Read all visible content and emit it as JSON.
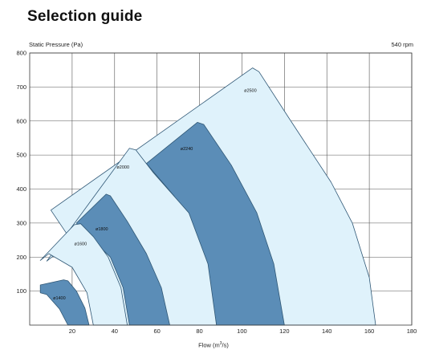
{
  "page_title": "Selection guide",
  "ylabel": "Static Pressure (Pa)",
  "rpm_label": "540 rpm",
  "xlabel_text": "Flow (m",
  "xlabel_sup": "3",
  "xlabel_tail": "/s)",
  "chart_data": {
    "type": "area",
    "title": "Selection guide",
    "xlabel": "Flow (m³/s)",
    "ylabel": "Static Pressure (Pa)",
    "xlim": [
      0,
      180
    ],
    "ylim": [
      0,
      800
    ],
    "xticks": [
      20,
      40,
      60,
      80,
      100,
      120,
      140,
      160,
      180
    ],
    "yticks": [
      100,
      200,
      300,
      400,
      500,
      600,
      700,
      800
    ],
    "grid": true,
    "annotation": "540 rpm",
    "colors": {
      "light": "#dff2fb",
      "dark": "#5b8db7",
      "outline": "#2f5775"
    },
    "regions": [
      {
        "label": "ø2500",
        "shade": "light",
        "label_at": [
          101,
          685
        ],
        "outline": [
          [
            10,
            338
          ],
          [
            105,
            756
          ],
          [
            108,
            745
          ],
          [
            122,
            610
          ],
          [
            142,
            420
          ],
          [
            152,
            300
          ],
          [
            160,
            140
          ],
          [
            163,
            0
          ],
          [
            43,
            0
          ],
          [
            30,
            135
          ],
          [
            20,
            245
          ]
        ]
      },
      {
        "label": "ø2240",
        "shade": "dark",
        "label_at": [
          71,
          515
        ],
        "outline": [
          [
            55,
            475
          ],
          [
            79,
            596
          ],
          [
            82,
            590
          ],
          [
            95,
            470
          ],
          [
            107,
            330
          ],
          [
            115,
            180
          ],
          [
            120,
            0
          ],
          [
            88,
            0
          ],
          [
            85,
            120
          ],
          [
            78,
            260
          ],
          [
            68,
            380
          ]
        ]
      },
      {
        "label": "ø2000",
        "shade": "light",
        "label_at": [
          41,
          460
        ],
        "outline": [
          [
            8,
            188
          ],
          [
            47,
            520
          ],
          [
            50,
            515
          ],
          [
            58,
            450
          ],
          [
            75,
            330
          ],
          [
            84,
            180
          ],
          [
            88,
            0
          ],
          [
            65,
            0
          ],
          [
            60,
            120
          ],
          [
            52,
            240
          ],
          [
            38,
            335
          ]
        ]
      },
      {
        "label": "ø1800",
        "shade": "dark",
        "label_at": [
          31,
          278
        ],
        "outline": [
          [
            22,
            300
          ],
          [
            36,
            385
          ],
          [
            38,
            380
          ],
          [
            46,
            305
          ],
          [
            55,
            210
          ],
          [
            62,
            110
          ],
          [
            66,
            0
          ],
          [
            47,
            0
          ],
          [
            44,
            110
          ],
          [
            38,
            200
          ],
          [
            28,
            260
          ]
        ]
      },
      {
        "label": "ø1600",
        "shade": "light",
        "label_at": [
          21,
          235
        ],
        "outline": [
          [
            5,
            190
          ],
          [
            21,
            295
          ],
          [
            24,
            298
          ],
          [
            30,
            260
          ],
          [
            37,
            200
          ],
          [
            43,
            110
          ],
          [
            46,
            0
          ],
          [
            30,
            0
          ],
          [
            27,
            95
          ],
          [
            20,
            170
          ],
          [
            9,
            210
          ]
        ]
      },
      {
        "label": "ø1400",
        "shade": "dark",
        "label_at": [
          11,
          75
        ],
        "outline": [
          [
            5,
            118
          ],
          [
            16,
            133
          ],
          [
            18,
            130
          ],
          [
            22,
            100
          ],
          [
            26,
            50
          ],
          [
            28,
            0
          ],
          [
            18,
            0
          ],
          [
            14,
            48
          ],
          [
            8,
            90
          ],
          [
            5,
            95
          ]
        ]
      }
    ]
  }
}
